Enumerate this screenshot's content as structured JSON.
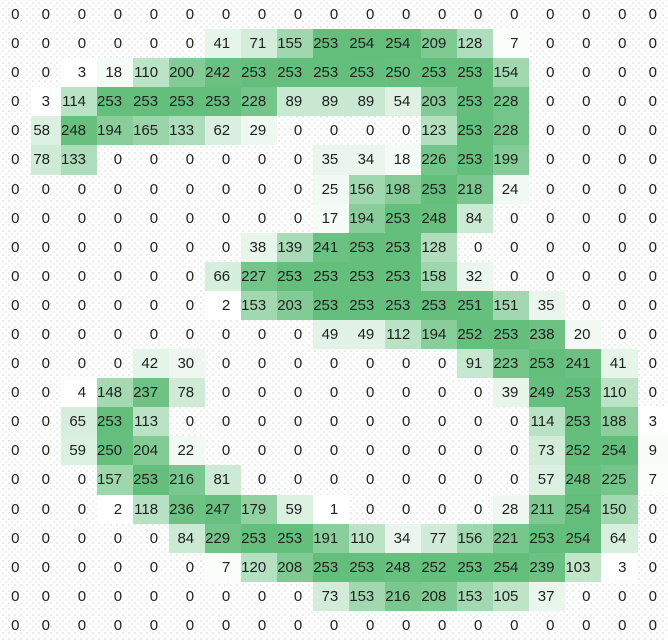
{
  "chart_data": {
    "type": "heatmap",
    "title": "",
    "description": "Grid of pixel intensity values (0-254) of a handwritten digit 2, shaded white to green by value",
    "rows": 22,
    "cols": 19,
    "value_min": 0,
    "value_max": 254,
    "color_low": "#FFFFFF",
    "color_high": "#63BE7B",
    "text_color": "#212121",
    "grid": "off",
    "legend": "none",
    "values": [
      [
        0,
        0,
        0,
        0,
        0,
        0,
        0,
        0,
        0,
        0,
        0,
        0,
        0,
        0,
        0,
        0,
        0,
        0,
        0
      ],
      [
        0,
        0,
        0,
        0,
        0,
        0,
        41,
        71,
        155,
        253,
        254,
        254,
        209,
        128,
        7,
        0,
        0,
        0,
        0
      ],
      [
        0,
        0,
        3,
        18,
        110,
        200,
        242,
        253,
        253,
        253,
        253,
        250,
        253,
        253,
        154,
        0,
        0,
        0,
        0
      ],
      [
        0,
        3,
        114,
        253,
        253,
        253,
        253,
        228,
        89,
        89,
        89,
        54,
        203,
        253,
        228,
        0,
        0,
        0,
        0
      ],
      [
        0,
        58,
        248,
        194,
        165,
        133,
        62,
        29,
        0,
        0,
        0,
        0,
        123,
        253,
        228,
        0,
        0,
        0,
        0
      ],
      [
        0,
        78,
        133,
        0,
        0,
        0,
        0,
        0,
        0,
        35,
        34,
        18,
        226,
        253,
        199,
        0,
        0,
        0,
        0
      ],
      [
        0,
        0,
        0,
        0,
        0,
        0,
        0,
        0,
        0,
        25,
        156,
        198,
        253,
        218,
        24,
        0,
        0,
        0,
        0
      ],
      [
        0,
        0,
        0,
        0,
        0,
        0,
        0,
        0,
        0,
        17,
        194,
        253,
        248,
        84,
        0,
        0,
        0,
        0,
        0
      ],
      [
        0,
        0,
        0,
        0,
        0,
        0,
        0,
        38,
        139,
        241,
        253,
        253,
        128,
        0,
        0,
        0,
        0,
        0,
        0
      ],
      [
        0,
        0,
        0,
        0,
        0,
        0,
        66,
        227,
        253,
        253,
        253,
        253,
        158,
        32,
        0,
        0,
        0,
        0,
        0
      ],
      [
        0,
        0,
        0,
        0,
        0,
        0,
        2,
        153,
        203,
        253,
        253,
        253,
        253,
        251,
        151,
        35,
        0,
        0,
        0
      ],
      [
        0,
        0,
        0,
        0,
        0,
        0,
        0,
        0,
        0,
        49,
        49,
        112,
        194,
        252,
        253,
        238,
        20,
        0,
        0
      ],
      [
        0,
        0,
        0,
        0,
        42,
        30,
        0,
        0,
        0,
        0,
        0,
        0,
        0,
        91,
        223,
        253,
        241,
        41,
        0
      ],
      [
        0,
        0,
        4,
        148,
        237,
        78,
        0,
        0,
        0,
        0,
        0,
        0,
        0,
        0,
        39,
        249,
        253,
        110,
        0
      ],
      [
        0,
        0,
        65,
        253,
        113,
        0,
        0,
        0,
        0,
        0,
        0,
        0,
        0,
        0,
        0,
        114,
        253,
        188,
        3
      ],
      [
        0,
        0,
        59,
        250,
        204,
        22,
        0,
        0,
        0,
        0,
        0,
        0,
        0,
        0,
        0,
        73,
        252,
        254,
        9
      ],
      [
        0,
        0,
        0,
        157,
        253,
        216,
        81,
        0,
        0,
        0,
        0,
        0,
        0,
        0,
        0,
        57,
        248,
        225,
        7
      ],
      [
        0,
        0,
        0,
        2,
        118,
        236,
        247,
        179,
        59,
        1,
        0,
        0,
        0,
        0,
        28,
        211,
        254,
        150,
        0
      ],
      [
        0,
        0,
        0,
        0,
        0,
        84,
        229,
        253,
        253,
        191,
        110,
        34,
        77,
        156,
        221,
        253,
        254,
        64,
        0
      ],
      [
        0,
        0,
        0,
        0,
        0,
        0,
        7,
        120,
        208,
        253,
        253,
        248,
        252,
        253,
        254,
        239,
        103,
        3,
        0
      ],
      [
        0,
        0,
        0,
        0,
        0,
        0,
        0,
        0,
        0,
        73,
        153,
        216,
        208,
        153,
        105,
        37,
        0,
        0,
        0
      ],
      [
        0,
        0,
        0,
        0,
        0,
        0,
        0,
        0,
        0,
        0,
        0,
        0,
        0,
        0,
        0,
        0,
        0,
        0,
        0
      ]
    ]
  }
}
